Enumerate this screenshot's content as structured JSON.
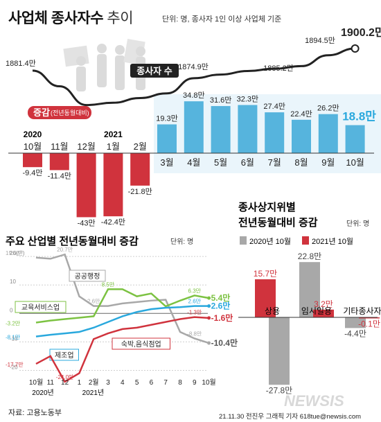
{
  "header": {
    "title_bold": "사업체 종사자수",
    "title_light": "추이",
    "unit_note": "단위: 명, 종사자 1인 이상 사업체 기준"
  },
  "footer": {
    "source": "자료: 고용노동부",
    "credit": "21.11.30 전진우 그래픽 기자 618tue@newsis.com",
    "watermark": "NEWSIS"
  },
  "colors": {
    "blue": "#56b4dd",
    "red": "#d0333d",
    "gray": "#a8a8a8",
    "dark": "#222222",
    "green": "#7cc242",
    "cyan": "#29a8dd",
    "highlight": "#29a8dd"
  },
  "chart_data": [
    {
      "type": "line",
      "id": "employees",
      "series": [
        {
          "name": "종사자 수"
        }
      ],
      "point_labels": [
        {
          "label": "1881.4만"
        },
        {
          "label": "1874.9만"
        },
        {
          "label": "1885.2만"
        },
        {
          "label": "1894.5만"
        },
        {
          "label": "1900.2만"
        }
      ],
      "x": [
        "2020.10",
        "2020.11",
        "2020.12",
        "2021.1",
        "2021.2",
        "2021.3",
        "2021.4",
        "2021.5",
        "2021.6",
        "2021.7",
        "2021.8",
        "2021.9",
        "2021.10"
      ],
      "values": [
        1881.4,
        1868,
        1852,
        1854,
        1858,
        1862,
        1874.9,
        1878,
        1881,
        1883,
        1885.2,
        1894.5,
        1900.2
      ]
    },
    {
      "type": "bar",
      "id": "yoy_change",
      "legend": {
        "label": "증감",
        "sub": "(전년동월대비)"
      },
      "year_labels": [
        "2020",
        "2021"
      ],
      "categories": [
        "10월",
        "11월",
        "12월",
        "1월",
        "2월",
        "3월",
        "4월",
        "5월",
        "6월",
        "7월",
        "8월",
        "9월",
        "10월"
      ],
      "values": [
        -9.4,
        -11.4,
        -43.0,
        -42.4,
        -21.8,
        19.3,
        34.8,
        31.6,
        32.3,
        27.4,
        22.4,
        26.2,
        18.8
      ],
      "labels": [
        "-9.4만",
        "-11.4만",
        "-43만",
        "-42.4만",
        "-21.8만",
        "19.3만",
        "34.8만",
        "31.6만",
        "32.3만",
        "27.4만",
        "22.4만",
        "26.2만",
        "18.8만"
      ]
    },
    {
      "type": "line",
      "id": "industry",
      "title": "주요 산업별 전년동월대비 증감",
      "unit": "단위: 명",
      "ytick_labels": [
        "20(만)",
        "10",
        "0",
        "-10",
        "-20"
      ],
      "ylim": [
        -24.5,
        21
      ],
      "x_labels": [
        "10월",
        "11",
        "12",
        "1",
        "2월",
        "3",
        "4",
        "5",
        "6",
        "7",
        "8",
        "9",
        "10월"
      ],
      "year_labels": [
        "2020년",
        "2021년"
      ],
      "series": [
        {
          "name": "공공행정",
          "color": "#a8a8a8",
          "values": [
            19.6,
            19.2,
            20.7,
            6.0,
            2.6,
            2.6,
            3.5,
            4.0,
            4.5,
            4.8,
            -6.5,
            -8.8,
            -10.4
          ],
          "labels": [
            "19.6만",
            "",
            "20.7만",
            "",
            "2.6만",
            "",
            "",
            "",
            "",
            "",
            "",
            "-8.8만",
            "-10.4만"
          ]
        },
        {
          "name": "교육서비스업",
          "color": "#7cc242",
          "values": [
            -3.2,
            -2.5,
            -2.0,
            -1.5,
            -1.0,
            8.5,
            8.5,
            6.0,
            7.0,
            2.5,
            4.5,
            6.3,
            5.4
          ],
          "labels": [
            "-3.2만",
            "",
            "",
            "",
            "",
            "8.5만",
            "",
            "",
            "",
            "",
            "",
            "6.3만",
            "5.4만"
          ]
        },
        {
          "name": "제조업",
          "color": "#29a8dd",
          "values": [
            -8.1,
            -7.5,
            -7.0,
            -6.5,
            -5.0,
            -3.0,
            -1.0,
            0.5,
            1.5,
            2.0,
            2.2,
            2.6,
            2.6
          ],
          "labels": [
            "-8.1만",
            "",
            "",
            "",
            "",
            "",
            "",
            "",
            "",
            "",
            "",
            "2.6만",
            "2.6만"
          ]
        },
        {
          "name": "숙박,음식점업",
          "color": "#d0333d",
          "values": [
            -17.7,
            -15.0,
            -24.0,
            -21.0,
            -9.0,
            -7.0,
            -5.5,
            -5.0,
            -4.0,
            -3.0,
            -2.0,
            -1.3,
            -1.6
          ],
          "labels": [
            "-17.7만",
            "",
            "-24.0만",
            "",
            "",
            "",
            "",
            "",
            "",
            "",
            "",
            "-1.3만",
            "-1.6만"
          ]
        }
      ]
    },
    {
      "type": "bar",
      "id": "status",
      "title_lines": [
        "종사상지위별",
        "전년동월대비 증감"
      ],
      "unit": "단위: 명",
      "categories": [
        "상용",
        "임시일용",
        "기타종사자"
      ],
      "series": [
        {
          "name": "2020년 10월",
          "color": "#a8a8a8",
          "values": [
            -27.8,
            22.8,
            -4.4
          ],
          "labels": [
            "-27.8만",
            "22.8만",
            "-4.4만"
          ]
        },
        {
          "name": "2021년 10월",
          "color": "#d0333d",
          "values": [
            15.7,
            3.2,
            -0.1
          ],
          "labels": [
            "15.7만",
            "3.2만",
            "-0.1만"
          ]
        }
      ]
    }
  ]
}
